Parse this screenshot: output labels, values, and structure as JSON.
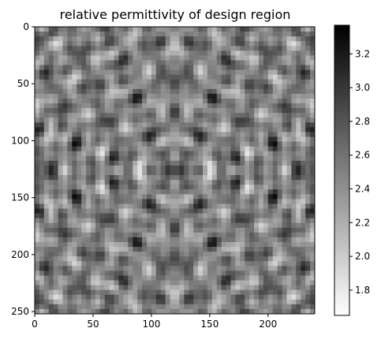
{
  "chart_data": {
    "type": "heatmap",
    "title": "relative permittivity of design region",
    "xlabel": "",
    "ylabel": "",
    "colormap": "gray_r",
    "image_shape": {
      "rows": 252,
      "cols": 240
    },
    "xlim": [
      0,
      240
    ],
    "ylim": [
      252,
      0
    ],
    "x_ticks": [
      0,
      50,
      100,
      150,
      200
    ],
    "y_ticks": [
      0,
      50,
      100,
      150,
      200,
      250
    ],
    "colorbar": {
      "vmin": 1.65,
      "vmax": 3.37,
      "ticks": [
        "1.8",
        "2.0",
        "2.2",
        "2.4",
        "2.6",
        "2.8",
        "3.0",
        "3.2"
      ]
    },
    "pattern_note": "speckled, roughly symmetric about center"
  },
  "colors": {
    "low": "#ffffff",
    "high": "#000000",
    "axis": "#000000"
  }
}
